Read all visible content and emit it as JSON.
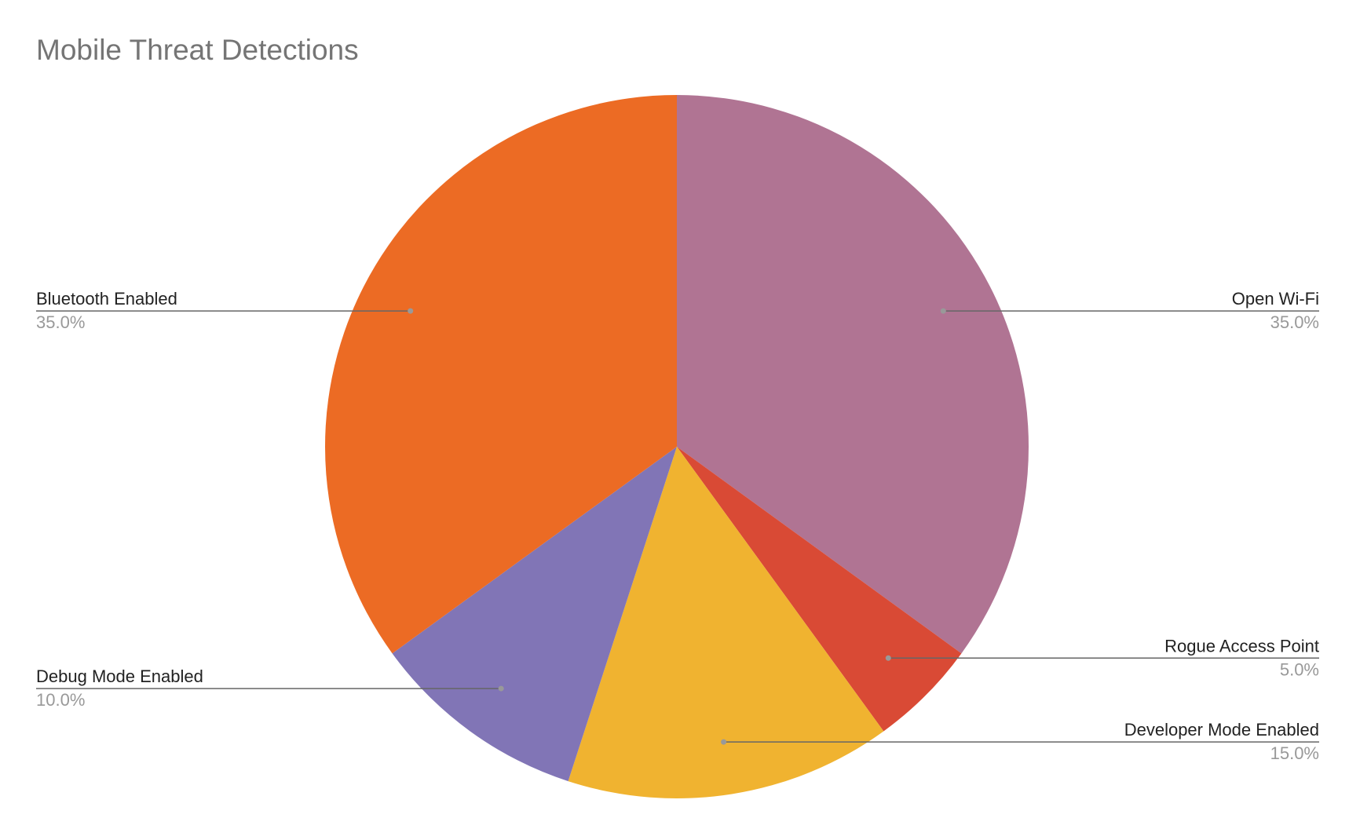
{
  "chart_data": {
    "type": "pie",
    "title": "Mobile Threat Detections",
    "categories": [
      "Open Wi-Fi",
      "Rogue Access Point",
      "Developer Mode Enabled",
      "Debug Mode Enabled",
      "Bluetooth Enabled"
    ],
    "values": [
      35,
      5,
      15,
      10,
      35
    ],
    "value_labels": [
      "35.0%",
      "5.0%",
      "15.0%",
      "10.0%",
      "35.0%"
    ],
    "colors": [
      "#b07493",
      "#d94a35",
      "#f0b330",
      "#8175b6",
      "#ec6b24"
    ]
  }
}
